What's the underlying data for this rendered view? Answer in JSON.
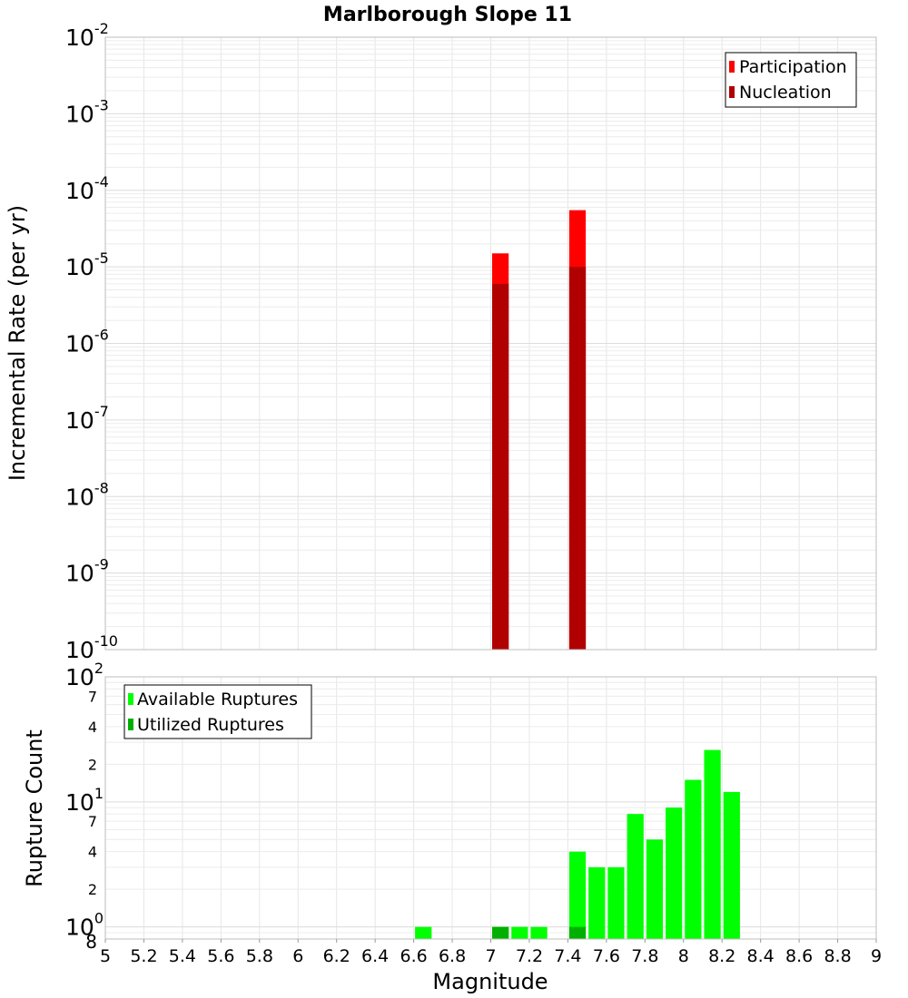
{
  "chart_data": [
    {
      "type": "bar",
      "title": "Marlborough Slope 11",
      "xlabel": "Magnitude",
      "ylabel": "Incremental Rate (per yr)",
      "yscale": "log",
      "xlim": [
        5,
        9
      ],
      "ylim": [
        1e-10,
        0.01
      ],
      "grid": true,
      "legend_position": "top-right",
      "bin_width": 0.1,
      "x_ticks": [
        "5",
        "5.2",
        "5.4",
        "5.6",
        "5.8",
        "6",
        "6.2",
        "6.4",
        "6.6",
        "6.8",
        "7",
        "7.2",
        "7.4",
        "7.6",
        "7.8",
        "8",
        "8.2",
        "8.4",
        "8.6",
        "8.8",
        "9"
      ],
      "y_ticks": [
        {
          "base": "10",
          "exp": "-2"
        },
        {
          "base": "10",
          "exp": "-3"
        },
        {
          "base": "10",
          "exp": "-4"
        },
        {
          "base": "10",
          "exp": "-5"
        },
        {
          "base": "10",
          "exp": "-6"
        },
        {
          "base": "10",
          "exp": "-7"
        },
        {
          "base": "10",
          "exp": "-8"
        },
        {
          "base": "10",
          "exp": "-9"
        },
        {
          "base": "10",
          "exp": "-10"
        }
      ],
      "series": [
        {
          "name": "Participation",
          "color": "#ff0000",
          "points": [
            {
              "x": 7.05,
              "y": 1.5e-05
            },
            {
              "x": 7.45,
              "y": 5.5e-05
            }
          ]
        },
        {
          "name": "Nucleation",
          "color": "#b00000",
          "points": [
            {
              "x": 7.05,
              "y": 6e-06
            },
            {
              "x": 7.45,
              "y": 1e-05
            }
          ]
        }
      ]
    },
    {
      "type": "bar",
      "title": "",
      "xlabel": "Magnitude",
      "ylabel": "Rupture Count",
      "yscale": "log",
      "xlim": [
        5,
        9
      ],
      "ylim": [
        0.8,
        100
      ],
      "grid": true,
      "legend_position": "top-left",
      "bin_width": 0.1,
      "y_ticks": [
        {
          "value": 100,
          "base": "10",
          "exp": "2"
        },
        {
          "value": 10,
          "base": "10",
          "exp": "1"
        },
        {
          "value": 1,
          "base": "10",
          "exp": "0"
        }
      ],
      "y_minor_ticks": [
        {
          "value": 70,
          "label": "7"
        },
        {
          "value": 40,
          "label": "4"
        },
        {
          "value": 20,
          "label": "2"
        },
        {
          "value": 7,
          "label": "7"
        },
        {
          "value": 4,
          "label": "4"
        },
        {
          "value": 2,
          "label": "2"
        },
        {
          "value": 0.8,
          "label": "8"
        }
      ],
      "series": [
        {
          "name": "Available Ruptures",
          "color": "#00ff00",
          "points": [
            {
              "x": 6.65,
              "y": 1
            },
            {
              "x": 7.05,
              "y": 1
            },
            {
              "x": 7.15,
              "y": 1
            },
            {
              "x": 7.25,
              "y": 1
            },
            {
              "x": 7.45,
              "y": 4
            },
            {
              "x": 7.55,
              "y": 3
            },
            {
              "x": 7.65,
              "y": 3
            },
            {
              "x": 7.75,
              "y": 8
            },
            {
              "x": 7.85,
              "y": 5
            },
            {
              "x": 7.95,
              "y": 9
            },
            {
              "x": 8.05,
              "y": 15
            },
            {
              "x": 8.15,
              "y": 26
            },
            {
              "x": 8.25,
              "y": 12
            }
          ]
        },
        {
          "name": "Utilized Ruptures",
          "color": "#00b000",
          "points": [
            {
              "x": 7.05,
              "y": 1
            },
            {
              "x": 7.45,
              "y": 1
            }
          ]
        }
      ]
    }
  ]
}
